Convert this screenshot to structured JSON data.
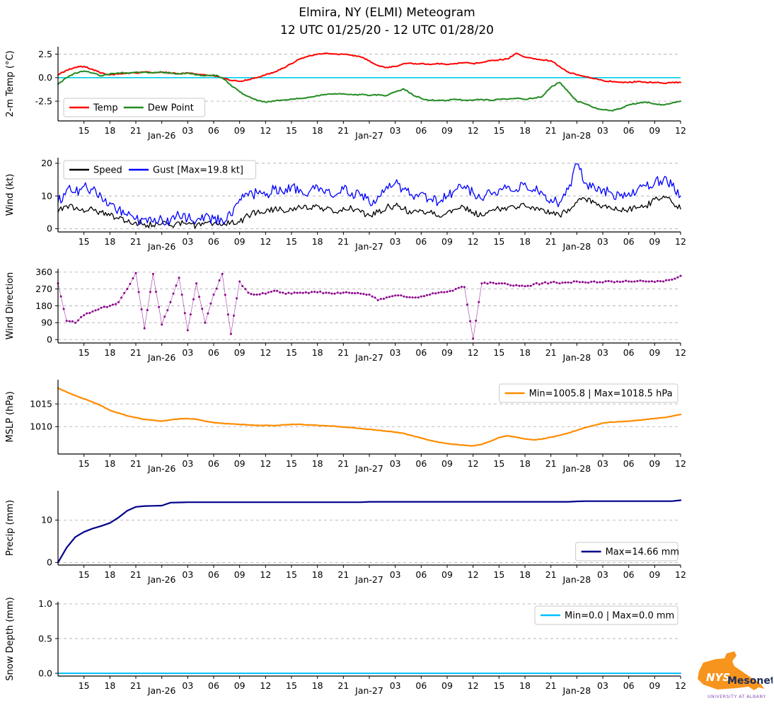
{
  "title": {
    "line1": "Elmira, NY (ELMI) Meteogram",
    "line2": "12 UTC 01/25/20 - 12 UTC 01/28/20"
  },
  "x_axis": {
    "start_hour": 0,
    "end_hour": 72,
    "tick_interval_hours": 3,
    "tick_labels": [
      "15",
      "18",
      "21",
      "Jan-26",
      "03",
      "06",
      "09",
      "12",
      "15",
      "18",
      "21",
      "Jan-27",
      "03",
      "06",
      "09",
      "12",
      "15",
      "18",
      "21",
      "Jan-28",
      "03",
      "06",
      "09",
      "12"
    ]
  },
  "logo": {
    "org": "NYS",
    "name": "Mesonet",
    "sub": "UNIVERSITY AT ALBANY",
    "color": "#f7941d"
  },
  "chart_data": [
    {
      "id": "temp",
      "type": "line",
      "ylabel": "2-m Temp (°C)",
      "ylim": [
        -4.6,
        3.3
      ],
      "yticks": [
        -2.5,
        0.0,
        2.5
      ],
      "ytick_labels": [
        "-2.5",
        "0.0",
        "2.5"
      ],
      "hlines": [
        {
          "y": 0,
          "color": "#00cfe8",
          "width": 1.6
        }
      ],
      "legend": {
        "position": "lower-left",
        "entries": [
          {
            "label": "Temp",
            "color": "#ff0000"
          },
          {
            "label": "Dew Point",
            "color": "#228b22"
          }
        ]
      },
      "series": [
        {
          "name": "Temp",
          "color": "#ff0000",
          "width": 2,
          "noise": 0.06,
          "values": [
            0.3,
            0.8,
            1.1,
            1.2,
            0.9,
            0.5,
            0.3,
            0.4,
            0.5,
            0.5,
            0.6,
            0.5,
            0.6,
            0.5,
            0.4,
            0.5,
            0.4,
            0.3,
            0.2,
            0.0,
            -0.3,
            -0.4,
            -0.2,
            0.0,
            0.3,
            0.6,
            1.0,
            1.5,
            2.0,
            2.3,
            2.5,
            2.6,
            2.5,
            2.5,
            2.4,
            2.2,
            1.8,
            1.3,
            1.1,
            1.2,
            1.5,
            1.5,
            1.5,
            1.4,
            1.5,
            1.4,
            1.5,
            1.6,
            1.5,
            1.6,
            1.8,
            1.9,
            2.0,
            2.6,
            2.2,
            2.0,
            1.9,
            1.8,
            1.2,
            0.6,
            0.3,
            0.1,
            -0.1,
            -0.3,
            -0.4,
            -0.5,
            -0.5,
            -0.4,
            -0.5,
            -0.5,
            -0.6,
            -0.5,
            -0.5
          ]
        },
        {
          "name": "Dew Point",
          "color": "#228b22",
          "width": 2,
          "noise": 0.06,
          "values": [
            -0.7,
            0.0,
            0.5,
            0.7,
            0.5,
            0.2,
            0.4,
            0.5,
            0.5,
            0.6,
            0.6,
            0.5,
            0.6,
            0.5,
            0.4,
            0.5,
            0.3,
            0.2,
            0.3,
            0.0,
            -0.8,
            -1.5,
            -2.0,
            -2.4,
            -2.6,
            -2.5,
            -2.4,
            -2.3,
            -2.2,
            -2.1,
            -1.9,
            -1.8,
            -1.7,
            -1.7,
            -1.8,
            -1.8,
            -1.9,
            -1.8,
            -1.9,
            -1.5,
            -1.2,
            -1.8,
            -2.2,
            -2.4,
            -2.4,
            -2.4,
            -2.3,
            -2.4,
            -2.4,
            -2.3,
            -2.4,
            -2.3,
            -2.3,
            -2.2,
            -2.3,
            -2.2,
            -2.0,
            -1.0,
            -0.5,
            -1.5,
            -2.5,
            -2.8,
            -3.2,
            -3.4,
            -3.5,
            -3.3,
            -2.9,
            -2.7,
            -2.6,
            -2.8,
            -2.9,
            -2.7,
            -2.5
          ]
        }
      ]
    },
    {
      "id": "wind",
      "type": "line",
      "ylabel": "Wind (kt)",
      "ylim": [
        -1,
        21.7
      ],
      "yticks": [
        0,
        10,
        20
      ],
      "ytick_labels": [
        "0",
        "10",
        "20"
      ],
      "legend": {
        "position": "upper-left",
        "entries": [
          {
            "label": "Speed",
            "color": "#000000"
          },
          {
            "label": "Gust [Max=19.8 kt]",
            "color": "#0000ff"
          }
        ]
      },
      "series": [
        {
          "name": "Speed",
          "color": "#000000",
          "width": 1.3,
          "noise": 1.0,
          "clampMin": 0,
          "values": [
            5,
            7,
            6,
            5,
            6,
            5,
            4,
            3,
            2,
            2,
            1.5,
            1,
            1.5,
            1,
            2,
            1.5,
            1,
            2,
            1.5,
            1,
            2,
            2,
            4,
            5,
            5,
            6,
            5.5,
            6,
            6.5,
            6,
            7,
            6,
            5,
            6.5,
            6,
            5,
            4,
            5,
            6.5,
            7,
            6,
            5,
            5.5,
            5,
            4,
            5,
            6,
            6.5,
            5,
            4,
            5.5,
            6,
            6.5,
            6,
            7,
            6.5,
            6,
            5,
            4,
            6,
            8,
            9,
            8,
            7,
            6,
            5.5,
            6,
            6.5,
            7,
            9,
            10,
            8,
            6
          ]
        },
        {
          "name": "Gust",
          "color": "#0000ff",
          "width": 1.3,
          "noise": 1.7,
          "clampMin": 0,
          "clampMax": 19.8,
          "values": [
            8,
            12,
            11,
            13,
            12,
            10,
            8,
            6,
            4,
            3,
            3,
            2,
            3,
            2.5,
            4,
            3,
            2.5,
            4,
            3,
            2.5,
            4,
            9,
            10,
            11,
            10,
            12,
            11,
            13,
            12,
            11,
            13,
            12,
            10,
            12,
            11,
            10,
            8,
            10,
            13,
            14,
            12,
            10,
            11,
            9,
            8,
            10,
            12,
            13,
            11,
            9,
            11,
            12,
            13,
            12,
            14,
            12,
            11,
            9,
            8,
            12,
            19.8,
            14,
            13,
            12,
            11,
            10,
            11,
            12,
            13,
            14,
            15,
            13,
            10
          ]
        }
      ]
    },
    {
      "id": "winddir",
      "type": "scatter",
      "ylabel": "Wind Direction",
      "ylim": [
        -18,
        378
      ],
      "yticks": [
        0,
        90,
        180,
        270,
        360
      ],
      "ytick_labels": [
        "0",
        "90",
        "180",
        "270",
        "360"
      ],
      "series": [
        {
          "name": "Direction",
          "color": "#8b008b",
          "width": 0.7,
          "style": "dots",
          "noise": 5,
          "clampMin": 0,
          "clampMax": 360,
          "values": [
            300,
            100,
            90,
            130,
            150,
            170,
            180,
            200,
            270,
            355,
            60,
            350,
            80,
            200,
            330,
            50,
            300,
            90,
            240,
            350,
            30,
            310,
            250,
            240,
            245,
            260,
            250,
            245,
            250,
            248,
            252,
            250,
            245,
            250,
            248,
            245,
            240,
            210,
            225,
            235,
            230,
            225,
            230,
            240,
            250,
            255,
            270,
            280,
            5,
            300,
            305,
            300,
            295,
            290,
            285,
            295,
            300,
            305,
            300,
            305,
            310,
            305,
            310,
            305,
            310,
            308,
            310,
            312,
            310,
            308,
            310,
            320,
            340
          ]
        }
      ]
    },
    {
      "id": "mslp",
      "type": "line",
      "ylabel": "MSLP (hPa)",
      "ylim": [
        1004,
        1020.3
      ],
      "yticks": [
        1010,
        1015
      ],
      "ytick_labels": [
        "1010",
        "1015"
      ],
      "legend": {
        "position": "upper-right",
        "entries": [
          {
            "label": "Min=1005.8 | Max=1018.5 hPa",
            "color": "#ff8c00"
          }
        ]
      },
      "series": [
        {
          "name": "MSLP",
          "color": "#ff8c00",
          "width": 2.2,
          "noise": 0.05,
          "values": [
            1018.5,
            1017.6,
            1016.8,
            1016.1,
            1015.4,
            1014.6,
            1013.6,
            1013.0,
            1012.4,
            1012.0,
            1011.6,
            1011.4,
            1011.2,
            1011.5,
            1011.7,
            1011.8,
            1011.6,
            1011.2,
            1010.9,
            1010.7,
            1010.6,
            1010.5,
            1010.4,
            1010.3,
            1010.3,
            1010.2,
            1010.4,
            1010.5,
            1010.5,
            1010.4,
            1010.3,
            1010.2,
            1010.1,
            1009.9,
            1009.8,
            1009.6,
            1009.4,
            1009.2,
            1009.0,
            1008.8,
            1008.5,
            1008.0,
            1007.5,
            1007.0,
            1006.6,
            1006.3,
            1006.1,
            1005.9,
            1005.8,
            1006.1,
            1006.8,
            1007.6,
            1008.0,
            1007.7,
            1007.3,
            1007.1,
            1007.3,
            1007.7,
            1008.1,
            1008.6,
            1009.2,
            1009.8,
            1010.3,
            1010.8,
            1011.0,
            1011.1,
            1011.2,
            1011.4,
            1011.6,
            1011.8,
            1012.0,
            1012.3,
            1012.7
          ]
        }
      ]
    },
    {
      "id": "precip",
      "type": "line",
      "ylabel": "Precip (mm)",
      "ylim": [
        -0.6,
        16.9
      ],
      "yticks": [
        0,
        10
      ],
      "ytick_labels": [
        "0",
        "10"
      ],
      "legend": {
        "position": "lower-right",
        "entries": [
          {
            "label": "Max=14.66 mm",
            "color": "#00008b"
          }
        ]
      },
      "series": [
        {
          "name": "Precip",
          "color": "#00008b",
          "width": 2.2,
          "noise": 0,
          "values": [
            0,
            3.5,
            6.0,
            7.2,
            8.0,
            8.6,
            9.3,
            10.6,
            12.2,
            13.1,
            13.3,
            13.35,
            13.4,
            14.1,
            14.15,
            14.2,
            14.2,
            14.2,
            14.2,
            14.2,
            14.2,
            14.2,
            14.2,
            14.2,
            14.2,
            14.2,
            14.2,
            14.2,
            14.2,
            14.2,
            14.2,
            14.2,
            14.2,
            14.2,
            14.2,
            14.2,
            14.3,
            14.3,
            14.3,
            14.3,
            14.3,
            14.3,
            14.3,
            14.3,
            14.3,
            14.3,
            14.3,
            14.3,
            14.3,
            14.3,
            14.3,
            14.3,
            14.3,
            14.3,
            14.3,
            14.3,
            14.3,
            14.3,
            14.3,
            14.3,
            14.4,
            14.45,
            14.45,
            14.45,
            14.45,
            14.45,
            14.45,
            14.45,
            14.45,
            14.45,
            14.45,
            14.45,
            14.66
          ]
        }
      ]
    },
    {
      "id": "snow",
      "type": "line",
      "ylabel": "Snow Depth (mm)",
      "ylim": [
        -0.04,
        1.03
      ],
      "yticks": [
        0.0,
        0.5,
        1.0
      ],
      "ytick_labels": [
        "0.0",
        "0.5",
        "1.0"
      ],
      "legend": {
        "position": "upper-right",
        "entries": [
          {
            "label": "Min=0.0 | Max=0.0 mm",
            "color": "#00bfff"
          }
        ]
      },
      "series": [
        {
          "name": "Snow Depth",
          "color": "#00bfff",
          "width": 2,
          "noise": 0,
          "values": [
            0,
            0
          ]
        }
      ]
    }
  ]
}
